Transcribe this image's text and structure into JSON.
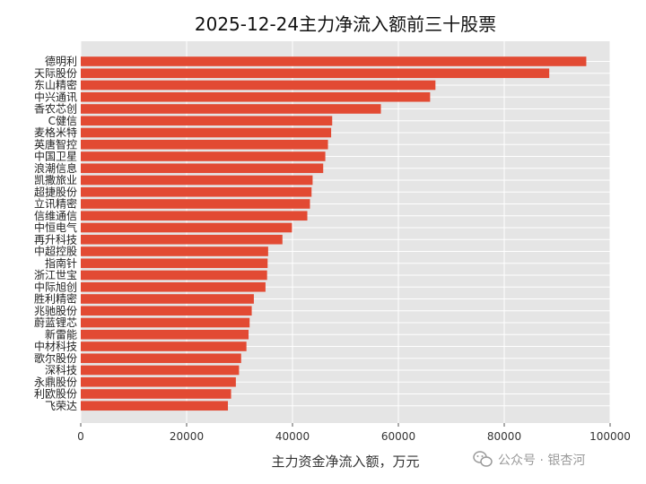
{
  "chart_data": {
    "type": "bar",
    "orientation": "horizontal",
    "title": "2025-12-24主力净流入额前三十股票",
    "xlabel": "主力资金净流入额，万元",
    "ylabel": "",
    "xlim": [
      0,
      100000
    ],
    "xticks": [
      0,
      20000,
      40000,
      60000,
      80000,
      100000
    ],
    "xtick_labels": [
      "0",
      "20000",
      "40000",
      "60000",
      "80000",
      "100000"
    ],
    "grid": true,
    "bar_color": "#e24a33",
    "background_color": "#e5e5e5",
    "categories": [
      "德明利",
      "天际股份",
      "东山精密",
      "中兴通讯",
      "香农芯创",
      "C健信",
      "麦格米特",
      "英唐智控",
      "中国卫星",
      "浪潮信息",
      "凯撒旅业",
      "超捷股份",
      "立讯精密",
      "信维通信",
      "中恒电气",
      "再升科技",
      "中超控股",
      "指南针",
      "浙江世宝",
      "中际旭创",
      "胜利精密",
      "兆驰股份",
      "蔚蓝锂芯",
      "新雷能",
      "中材科技",
      "歌尔股份",
      "深科技",
      "永鼎股份",
      "利欧股份",
      "飞荣达"
    ],
    "values": [
      95500,
      88500,
      67000,
      66000,
      56700,
      47500,
      47300,
      46700,
      46200,
      45800,
      43800,
      43600,
      43300,
      42800,
      39900,
      38100,
      35400,
      35300,
      35200,
      34900,
      32700,
      32300,
      31900,
      31700,
      31300,
      30300,
      29900,
      29300,
      28400,
      27800
    ]
  },
  "watermark": {
    "text": "公众号 · 银杏河",
    "icon": "wechat-icon"
  }
}
